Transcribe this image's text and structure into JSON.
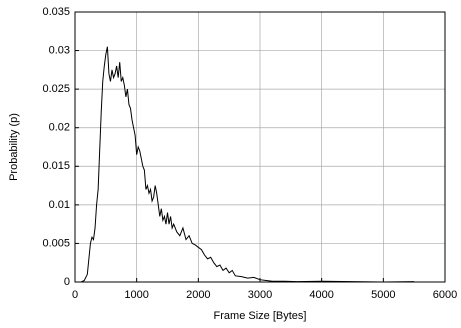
{
  "chart_data": {
    "type": "line",
    "xlabel": "Frame Size [Bytes]",
    "ylabel": "Probability (p)",
    "xlim": [
      0,
      6000
    ],
    "xticks": [
      0,
      1000,
      2000,
      3000,
      4000,
      5000,
      6000
    ],
    "ylim": [
      0,
      0.035
    ],
    "yticks": [
      0,
      0.005,
      0.01,
      0.015,
      0.02,
      0.025,
      0.03,
      0.035
    ],
    "grid": true,
    "series": [
      {
        "color": "#000000",
        "x": [
          0,
          100,
          150,
          200,
          250,
          275,
          300,
          325,
          350,
          375,
          400,
          425,
          450,
          475,
          500,
          525,
          550,
          575,
          600,
          625,
          650,
          675,
          700,
          725,
          750,
          775,
          800,
          825,
          850,
          875,
          900,
          925,
          950,
          975,
          1000,
          1025,
          1050,
          1075,
          1100,
          1125,
          1150,
          1175,
          1200,
          1225,
          1250,
          1275,
          1300,
          1325,
          1350,
          1375,
          1400,
          1425,
          1450,
          1475,
          1500,
          1525,
          1550,
          1575,
          1600,
          1650,
          1700,
          1750,
          1800,
          1850,
          1900,
          1950,
          2000,
          2050,
          2100,
          2150,
          2200,
          2250,
          2300,
          2350,
          2400,
          2450,
          2500,
          2550,
          2600,
          2700,
          2800,
          2900,
          3000,
          3100,
          3200,
          3400,
          3600,
          4000,
          4500,
          5000,
          5500
        ],
        "values": [
          0,
          0,
          0.0002,
          0.001,
          0.005,
          0.0058,
          0.0055,
          0.007,
          0.01,
          0.012,
          0.017,
          0.022,
          0.026,
          0.028,
          0.0295,
          0.0305,
          0.027,
          0.026,
          0.0275,
          0.0265,
          0.027,
          0.028,
          0.0265,
          0.0285,
          0.026,
          0.0265,
          0.0255,
          0.024,
          0.025,
          0.023,
          0.0225,
          0.021,
          0.02,
          0.019,
          0.0165,
          0.0175,
          0.017,
          0.016,
          0.015,
          0.0145,
          0.012,
          0.0125,
          0.0115,
          0.012,
          0.0105,
          0.011,
          0.0125,
          0.0115,
          0.01,
          0.0085,
          0.0095,
          0.008,
          0.0085,
          0.0075,
          0.009,
          0.0075,
          0.0085,
          0.007,
          0.0075,
          0.0065,
          0.006,
          0.007,
          0.0055,
          0.006,
          0.005,
          0.0048,
          0.0045,
          0.0042,
          0.0035,
          0.003,
          0.0032,
          0.0025,
          0.002,
          0.0022,
          0.0015,
          0.0018,
          0.0012,
          0.0015,
          0.0008,
          0.0007,
          0.0005,
          0.0006,
          0.0003,
          0.0002,
          0.0001,
          0.0001,
          5e-05,
          0.0001,
          5e-05,
          0,
          5e-05
        ]
      }
    ]
  }
}
